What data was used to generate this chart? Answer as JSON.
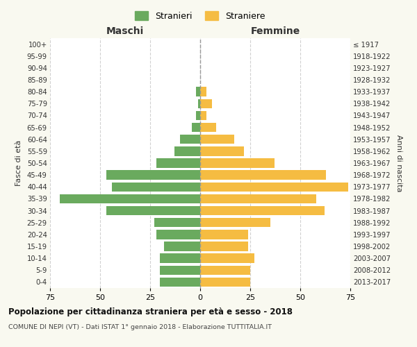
{
  "age_groups": [
    "0-4",
    "5-9",
    "10-14",
    "15-19",
    "20-24",
    "25-29",
    "30-34",
    "35-39",
    "40-44",
    "45-49",
    "50-54",
    "55-59",
    "60-64",
    "65-69",
    "70-74",
    "75-79",
    "80-84",
    "85-89",
    "90-94",
    "95-99",
    "100+"
  ],
  "birth_years": [
    "2013-2017",
    "2008-2012",
    "2003-2007",
    "1998-2002",
    "1993-1997",
    "1988-1992",
    "1983-1987",
    "1978-1982",
    "1973-1977",
    "1968-1972",
    "1963-1967",
    "1958-1962",
    "1953-1957",
    "1948-1952",
    "1943-1947",
    "1938-1942",
    "1933-1937",
    "1928-1932",
    "1923-1927",
    "1918-1922",
    "≤ 1917"
  ],
  "maschi": [
    20,
    20,
    20,
    18,
    22,
    23,
    47,
    70,
    44,
    47,
    22,
    13,
    10,
    4,
    2,
    1,
    2,
    0,
    0,
    0,
    0
  ],
  "femmine": [
    25,
    25,
    27,
    24,
    24,
    35,
    62,
    58,
    74,
    63,
    37,
    22,
    17,
    8,
    3,
    6,
    3,
    0,
    0,
    0,
    0
  ],
  "maschi_color": "#6aaa5e",
  "femmine_color": "#f5bc42",
  "background_color": "#f9f9f0",
  "plot_bg_color": "#ffffff",
  "grid_color": "#cccccc",
  "title": "Popolazione per cittadinanza straniera per età e sesso - 2018",
  "subtitle": "COMUNE DI NEPI (VT) - Dati ISTAT 1° gennaio 2018 - Elaborazione TUTTITALIA.IT",
  "xlabel_left": "Maschi",
  "xlabel_right": "Femmine",
  "ylabel_left": "Fasce di età",
  "ylabel_right": "Anni di nascita",
  "legend_maschi": "Stranieri",
  "legend_femmine": "Straniere",
  "xlim": 75,
  "bar_height": 0.78
}
